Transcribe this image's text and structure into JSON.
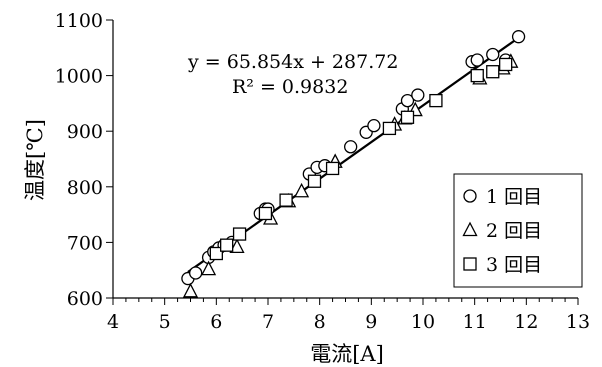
{
  "chart_data": {
    "type": "scatter",
    "xlabel": "電流[A]",
    "ylabel": "温度[℃]",
    "xlim": [
      4,
      13
    ],
    "ylim": [
      600,
      1100
    ],
    "xticks": [
      4,
      5,
      6,
      7,
      8,
      9,
      10,
      11,
      12,
      13
    ],
    "yticks": [
      600,
      700,
      800,
      900,
      1000,
      1100
    ],
    "grid": false,
    "legend_position": "bottom-right",
    "trendline": {
      "slope": 65.854,
      "intercept": 287.72,
      "x_range": [
        5.45,
        11.85
      ],
      "equation": "y = 65.854x + 287.72",
      "r_squared": "R² = 0.9832"
    },
    "series": [
      {
        "name": "1 回目",
        "marker": "circle",
        "points": [
          [
            5.45,
            635
          ],
          [
            5.6,
            645
          ],
          [
            5.85,
            673
          ],
          [
            5.95,
            683
          ],
          [
            6.05,
            690
          ],
          [
            6.15,
            695
          ],
          [
            6.3,
            700
          ],
          [
            6.85,
            752
          ],
          [
            6.95,
            760
          ],
          [
            7.0,
            760
          ],
          [
            7.8,
            823
          ],
          [
            7.95,
            835
          ],
          [
            8.1,
            838
          ],
          [
            8.6,
            872
          ],
          [
            8.9,
            898
          ],
          [
            9.05,
            910
          ],
          [
            9.6,
            940
          ],
          [
            9.7,
            955
          ],
          [
            9.9,
            965
          ],
          [
            10.95,
            1025
          ],
          [
            11.05,
            1028
          ],
          [
            11.35,
            1038
          ],
          [
            11.6,
            1028
          ],
          [
            11.85,
            1070
          ]
        ]
      },
      {
        "name": "2 回目",
        "marker": "triangle",
        "points": [
          [
            5.5,
            612
          ],
          [
            5.85,
            652
          ],
          [
            6.4,
            692
          ],
          [
            7.05,
            743
          ],
          [
            7.4,
            774
          ],
          [
            7.65,
            792
          ],
          [
            8.3,
            845
          ],
          [
            9.45,
            912
          ],
          [
            9.65,
            923
          ],
          [
            9.85,
            938
          ],
          [
            11.1,
            995
          ],
          [
            11.55,
            1013
          ],
          [
            11.7,
            1025
          ]
        ]
      },
      {
        "name": "3 回目",
        "marker": "square",
        "points": [
          [
            6.0,
            680
          ],
          [
            6.2,
            695
          ],
          [
            6.45,
            715
          ],
          [
            6.95,
            752
          ],
          [
            7.35,
            776
          ],
          [
            7.9,
            810
          ],
          [
            8.25,
            833
          ],
          [
            9.35,
            905
          ],
          [
            9.7,
            925
          ],
          [
            10.25,
            955
          ],
          [
            11.05,
            1000
          ],
          [
            11.35,
            1007
          ],
          [
            11.6,
            1020
          ]
        ]
      }
    ]
  }
}
